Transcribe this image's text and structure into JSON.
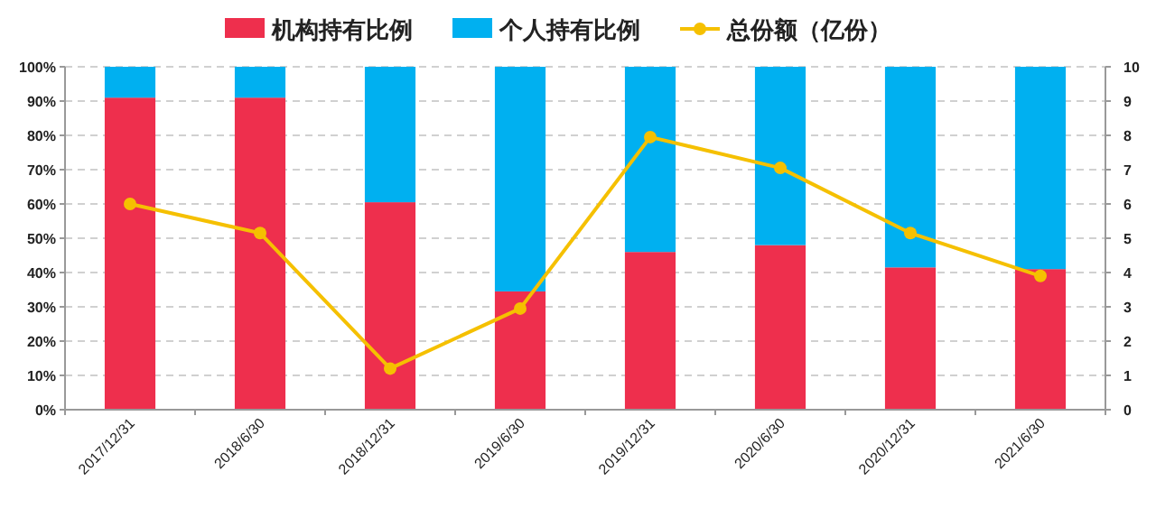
{
  "chart_data": {
    "type": "bar",
    "stacked": true,
    "categories": [
      "2017/12/31",
      "2018/6/30",
      "2018/12/31",
      "2019/6/30",
      "2019/12/31",
      "2020/6/30",
      "2020/12/31",
      "2021/6/30"
    ],
    "series": [
      {
        "name": "机构持有比例",
        "color": "#ee2f4d",
        "values": [
          91,
          91,
          60.5,
          34.5,
          46,
          48,
          41.5,
          41
        ]
      },
      {
        "name": "个人持有比例",
        "color": "#00b0f0",
        "values": [
          9,
          9,
          39.5,
          65.5,
          54,
          52,
          58.5,
          59
        ]
      },
      {
        "name": "总份额（亿份）",
        "type": "line",
        "axis": "y2",
        "color": "#f5c000",
        "marker": "circle",
        "values": [
          6.0,
          5.15,
          1.2,
          2.95,
          7.95,
          7.05,
          5.15,
          3.9
        ]
      }
    ],
    "ylim": [
      0,
      100
    ],
    "yticks": [
      {
        "value": 0,
        "label": "0%"
      },
      {
        "value": 10,
        "label": "10%"
      },
      {
        "value": 20,
        "label": "20%"
      },
      {
        "value": 30,
        "label": "30%"
      },
      {
        "value": 40,
        "label": "40%"
      },
      {
        "value": 50,
        "label": "50%"
      },
      {
        "value": 60,
        "label": "60%"
      },
      {
        "value": 70,
        "label": "70%"
      },
      {
        "value": 80,
        "label": "80%"
      },
      {
        "value": 90,
        "label": "90%"
      },
      {
        "value": 100,
        "label": "100%"
      }
    ],
    "y2lim": [
      0,
      10
    ],
    "y2ticks": [
      0,
      1,
      2,
      3,
      4,
      5,
      6,
      7,
      8,
      9,
      10
    ],
    "grid": "y",
    "legend": "top"
  }
}
